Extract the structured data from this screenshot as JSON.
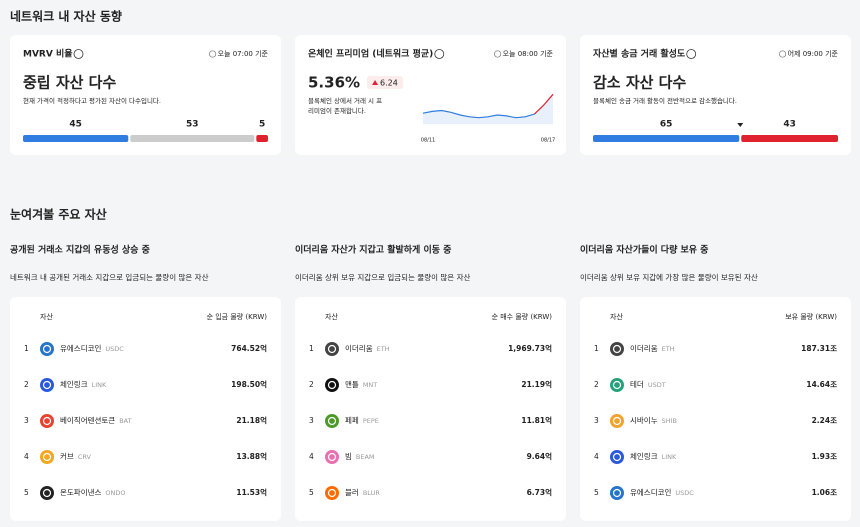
{
  "network": {
    "title": "네트워크 내 자산 동향",
    "cards": [
      {
        "title": "MVRV 비율",
        "time": "오늘 07:00 기준",
        "headline": "중립 자산 다수",
        "desc": "현재 가격이 적정하다고 평가된 자산이 다수입니다.",
        "bar": {
          "values": [
            45,
            53,
            5
          ],
          "colors": [
            "#2f7de1",
            "#cccccc",
            "#e0212e"
          ],
          "label_colors": [
            "#2f7de1",
            "#222222",
            "#e0212e"
          ]
        }
      },
      {
        "title": "온체인 프리미엄 (네트워크 평균)",
        "time": "오늘 08:00 기준",
        "headline": "5.36%",
        "change": "6.24",
        "desc": [
          "블록체인 상에서 거래 시 프",
          "리미엄이 존재합니다."
        ],
        "chart": {
          "type": "line",
          "xlabels": [
            "08/11",
            "08/17"
          ],
          "values": [
            3.2,
            3.4,
            3.5,
            3.3,
            3.0,
            2.8,
            2.7,
            2.8,
            3.0,
            2.9,
            2.7,
            2.8,
            3.1,
            4.1,
            5.3
          ],
          "ylim": [
            2,
            6
          ],
          "color": "#2f7de1",
          "end_color": "#e0212e"
        }
      },
      {
        "title": "자산별 송금 거래 활성도",
        "time": "어제 09:00 기준",
        "headline": "감소 자산 다수",
        "desc": "블록체인 송금 거래 활동이 전반적으로 감소했습니다.",
        "bar": {
          "values": [
            65,
            43
          ],
          "colors": [
            "#2f7de1",
            "#e0212e"
          ],
          "label_colors": [
            "#2f7de1",
            "#e0212e"
          ]
        }
      }
    ]
  },
  "watch": {
    "title": "눈여겨볼 주요 자산",
    "lists": [
      {
        "title": "공개된 거래소 지갑의 유동성 상승 중",
        "subtitle": "네트워크 내 공개된 거래소 지갑으로 입금되는 물량이 많은 자산",
        "columns": [
          "자산",
          "순 입금 물량 (KRW)"
        ],
        "rows": [
          {
            "rank": 1,
            "name": "유에스디코인",
            "ticker": "USDC",
            "value": "764.52억",
            "color": "#2775ca"
          },
          {
            "rank": 2,
            "name": "체인링크",
            "ticker": "LINK",
            "value": "198.50억",
            "color": "#2a5ada"
          },
          {
            "rank": 3,
            "name": "베이직어텐션토큰",
            "ticker": "BAT",
            "value": "21.18억",
            "color": "#e8432f"
          },
          {
            "rank": 4,
            "name": "커브",
            "ticker": "CRV",
            "value": "13.88억",
            "color": "#f5a623"
          },
          {
            "rank": 5,
            "name": "온도파이낸스",
            "ticker": "ONDO",
            "value": "11.53억",
            "color": "#222222"
          }
        ]
      },
      {
        "title": "이더리움 자산가 지갑고 활발하게 이동 중",
        "subtitle": "이더리움 상위 보유 지갑으로 입금되는 물량이 많은 자산",
        "columns": [
          "자산",
          "순 매수 물량 (KRW)"
        ],
        "rows": [
          {
            "rank": 1,
            "name": "이더리움",
            "ticker": "ETH",
            "value": "1,969.73억",
            "color": "#444444"
          },
          {
            "rank": 2,
            "name": "맨틀",
            "ticker": "MNT",
            "value": "21.19억",
            "color": "#111111"
          },
          {
            "rank": 3,
            "name": "페페",
            "ticker": "PEPE",
            "value": "11.81억",
            "color": "#4c9a2a"
          },
          {
            "rank": 4,
            "name": "빔",
            "ticker": "BEAM",
            "value": "9.64억",
            "color": "#e86fb0"
          },
          {
            "rank": 5,
            "name": "블러",
            "ticker": "BLUR",
            "value": "6.73억",
            "color": "#ff6b00"
          }
        ]
      },
      {
        "title": "이더리움 자산가들이 다량 보유 중",
        "subtitle": "이더리움 상위 보유 지갑에 가장 많은 물량이 보유된 자산",
        "columns": [
          "자산",
          "보유 물량 (KRW)"
        ],
        "rows": [
          {
            "rank": 1,
            "name": "이더리움",
            "ticker": "ETH",
            "value": "187.31조",
            "color": "#444444"
          },
          {
            "rank": 2,
            "name": "테더",
            "ticker": "USDT",
            "value": "14.64조",
            "color": "#26a17b"
          },
          {
            "rank": 3,
            "name": "시바이누",
            "ticker": "SHIB",
            "value": "2.24조",
            "color": "#f2a230"
          },
          {
            "rank": 4,
            "name": "체인링크",
            "ticker": "LINK",
            "value": "1.93조",
            "color": "#2a5ada"
          },
          {
            "rank": 5,
            "name": "유에스디코인",
            "ticker": "USDC",
            "value": "1.06조",
            "color": "#2775ca"
          }
        ]
      }
    ]
  }
}
